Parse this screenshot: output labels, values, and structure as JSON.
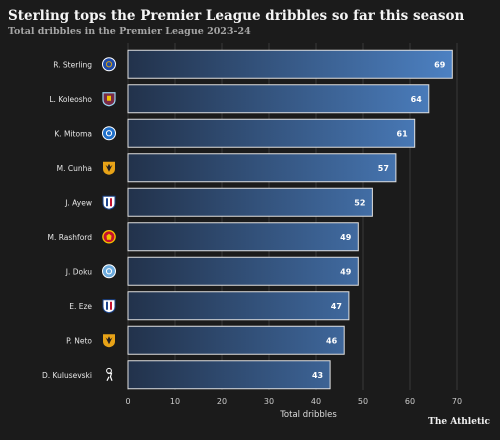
{
  "title": "Sterling tops the Premier League dribbles so far this season",
  "subtitle": "Total dribbles in the Premier League 2023-24",
  "brand": "The Athletic",
  "chart_data": {
    "type": "bar",
    "orientation": "horizontal",
    "title": "Sterling tops the Premier League dribbles so far this season",
    "subtitle": "Total dribbles in the Premier League 2023-24",
    "xlabel": "Total dribbles",
    "ylabel": "",
    "xlim": [
      0,
      70
    ],
    "xticks": [
      0,
      10,
      20,
      30,
      40,
      50,
      60,
      70
    ],
    "grid": true,
    "categories": [
      "R. Sterling",
      "L. Koleosho",
      "K. Mitoma",
      "M. Cunha",
      "J. Ayew",
      "M. Rashford",
      "J. Doku",
      "E. Eze",
      "P. Neto",
      "D. Kulusevski"
    ],
    "values": [
      69,
      64,
      61,
      57,
      52,
      49,
      49,
      47,
      46,
      43
    ],
    "data_labels": [
      "69",
      "64",
      "61",
      "57",
      "52",
      "49",
      "49",
      "47",
      "46",
      "43"
    ],
    "club_badges": [
      "chelsea-badge-icon",
      "burnley-badge-icon",
      "brighton-badge-icon",
      "wolves-badge-icon",
      "crystal-palace-badge-icon",
      "man-united-badge-icon",
      "man-city-badge-icon",
      "crystal-palace-badge-icon",
      "wolves-badge-icon",
      "tottenham-badge-icon"
    ],
    "badge_colors": [
      "#1f4aa8",
      "#7a2a45",
      "#1f6fc9",
      "#e8a317",
      "#1b458f",
      "#c8102e",
      "#6cabdd",
      "#1b458f",
      "#e8a317",
      "#ffffff"
    ],
    "bar_colors": {
      "gradient_from": "#22324b",
      "gradient_to": "#4d82c4",
      "bar_edge": "#e0e0e0",
      "label_text": "#ffffff"
    },
    "colors": {
      "background": "#1b1b1b",
      "grid": "#3a3a3a",
      "tick_text": "#cccccc"
    }
  }
}
